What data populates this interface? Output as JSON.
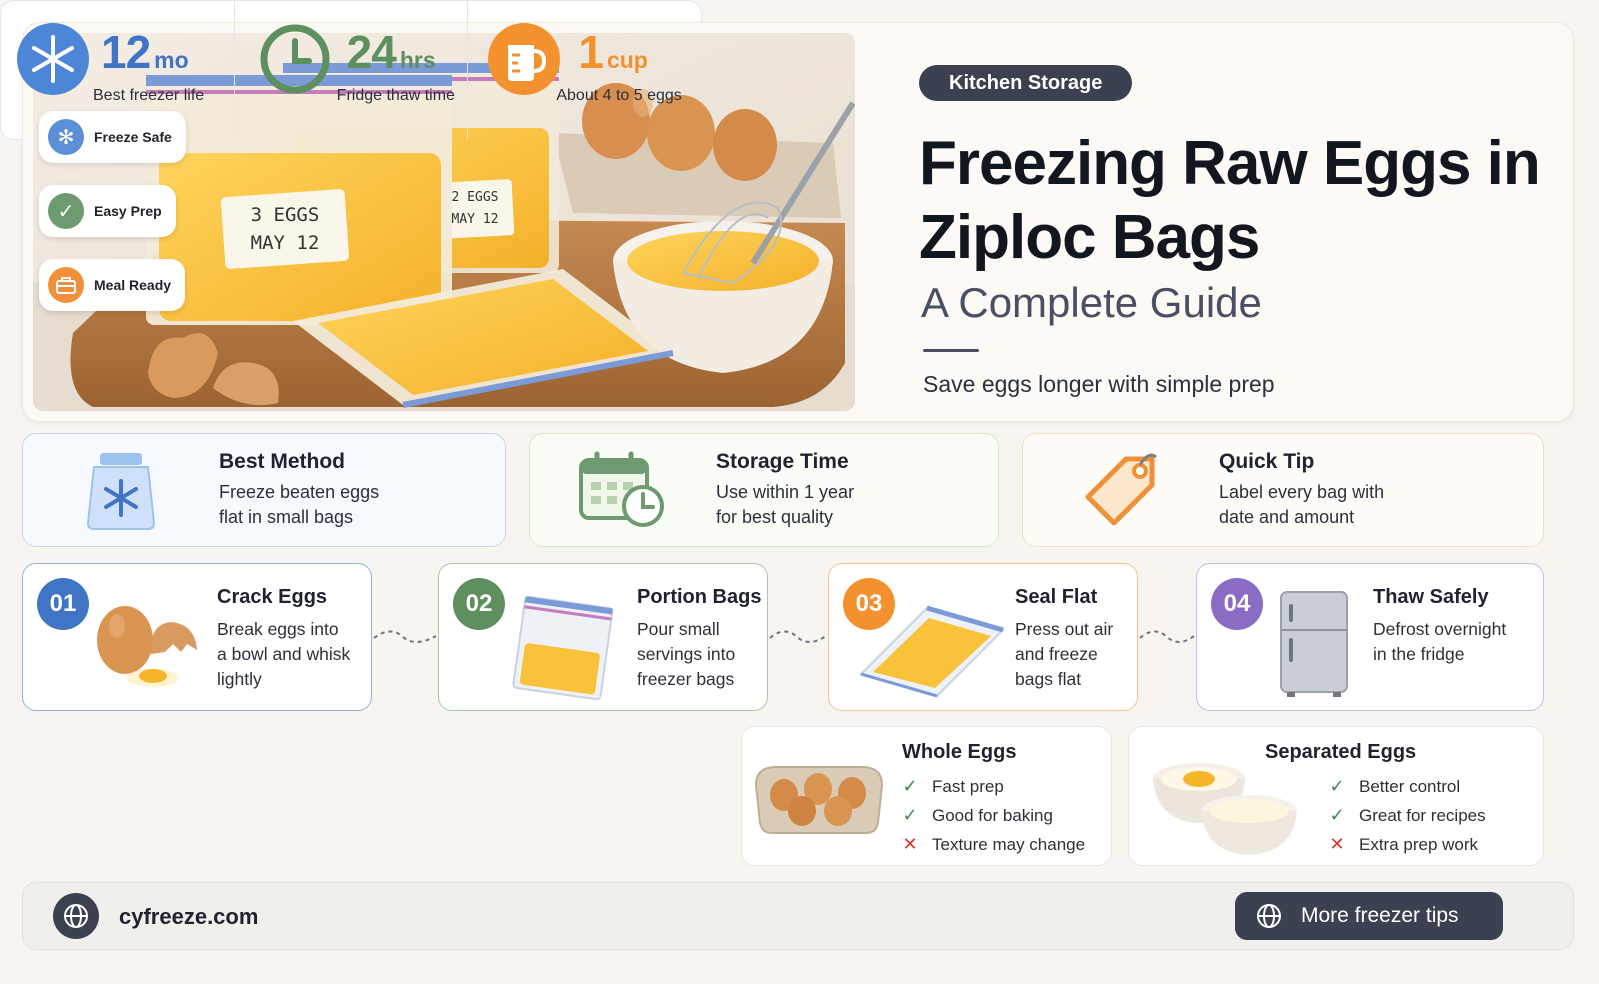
{
  "hero": {
    "category": "Kitchen Storage",
    "title": "Freezing Raw Eggs in Ziploc Bags",
    "subtitle": "A Complete Guide",
    "tagline": "Save eggs longer with simple prep",
    "photo": {
      "big_bag_label_line1": "3 EGGS",
      "big_bag_label_line2": "MAY 12",
      "small_bag_label_line1": "2 EGGS",
      "small_bag_label_line2": "MAY 12"
    },
    "chips": [
      {
        "label": "Freeze Safe",
        "icon": "snowflake-icon",
        "color": "#5b8fd6"
      },
      {
        "label": "Easy Prep",
        "icon": "check-icon",
        "color": "#6d9a6f"
      },
      {
        "label": "Meal Ready",
        "icon": "lunchbox-icon",
        "color": "#f0913a"
      }
    ]
  },
  "info_cards": [
    {
      "title": "Best Method",
      "line1": "Freeze beaten eggs",
      "line2": "flat in small bags",
      "icon": "freezer-bag-icon",
      "border": "#c9d8ee",
      "bg": "#f6f9fe"
    },
    {
      "title": "Storage Time",
      "line1": "Use within 1 year",
      "line2": "for best quality",
      "icon": "calendar-clock-icon",
      "border": "#d7e5c7",
      "bg": "#fafcf6"
    },
    {
      "title": "Quick Tip",
      "line1": "Label every bag with",
      "line2": "date and amount",
      "icon": "price-tag-icon",
      "border": "#f3dcc1",
      "bg": "#fffbf6"
    }
  ],
  "steps": [
    {
      "num": "01",
      "title": "Crack Eggs",
      "lines": [
        "Break eggs into",
        "a bowl and whisk",
        "lightly"
      ],
      "color": "#3f75c4",
      "border": "#8fb3e4",
      "icon": "cracked-egg-icon"
    },
    {
      "num": "02",
      "title": "Portion Bags",
      "lines": [
        "Pour small",
        "servings into",
        "freezer bags"
      ],
      "color": "#5e8f5f",
      "border": "#a9c9a5",
      "icon": "filled-bag-icon"
    },
    {
      "num": "03",
      "title": "Seal Flat",
      "lines": [
        "Press out air",
        "and freeze",
        "bags flat"
      ],
      "color": "#f2912e",
      "border": "#f6c38b",
      "icon": "flat-bag-icon"
    },
    {
      "num": "04",
      "title": "Thaw Safely",
      "lines": [
        "Defrost overnight",
        "in the fridge"
      ],
      "color": "#8a6cc4",
      "border": "#c9b8e6",
      "icon": "fridge-icon"
    }
  ],
  "stats": [
    {
      "value": "12",
      "unit": "mo",
      "label": "Best freezer life",
      "color": "#3f75c4",
      "icon": "snowflake-icon"
    },
    {
      "value": "24",
      "unit": "hrs",
      "label": "Fridge thaw time",
      "color": "#5e8f5f",
      "icon": "clock-icon"
    },
    {
      "value": "1",
      "unit": "cup",
      "label": "About 4 to 5 eggs",
      "color": "#f2912e",
      "icon": "measuring-cup-icon"
    }
  ],
  "compare": [
    {
      "title": "Whole Eggs",
      "icon": "egg-carton-icon",
      "items": [
        {
          "text": "Fast prep",
          "ok": true
        },
        {
          "text": "Good for baking",
          "ok": true
        },
        {
          "text": "Texture may change",
          "ok": false
        }
      ]
    },
    {
      "title": "Separated Eggs",
      "icon": "separated-bowls-icon",
      "items": [
        {
          "text": "Better control",
          "ok": true
        },
        {
          "text": "Great for recipes",
          "ok": true
        },
        {
          "text": "Extra prep work",
          "ok": false
        }
      ]
    }
  ],
  "footer": {
    "site": "cyfreeze.com",
    "button": "More freezer tips"
  }
}
